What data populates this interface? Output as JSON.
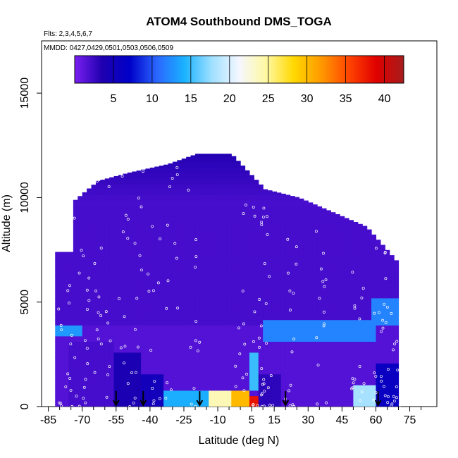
{
  "chart_data": {
    "type": "heatmap",
    "title": "ATOM4 Southbound DMS_TOGA",
    "flights_note": "Flts: 2,3,4,5,6,7",
    "dates_note": "MMDD: 0427,0429,0501,0503,0506,0509",
    "xlabel": "Latitude (deg N)",
    "ylabel": "Altitude (m)",
    "xlim": [
      -88,
      87
    ],
    "ylim": [
      0,
      17500
    ],
    "x_ticks": [
      "-85",
      "-70",
      "-55",
      "-40",
      "-25",
      "-10",
      "5",
      "15",
      "30",
      "45",
      "60",
      "75"
    ],
    "x_tick_values": [
      -85,
      -70,
      -55,
      -40,
      -25,
      -10,
      5,
      15,
      30,
      45,
      60,
      75
    ],
    "y_ticks": [
      "0",
      "5000",
      "10000",
      "15000"
    ],
    "y_tick_values": [
      0,
      5000,
      10000,
      15000
    ],
    "colorbar": {
      "ticks": [
        "5",
        "10",
        "15",
        "20",
        "25",
        "30",
        "35",
        "40"
      ],
      "tick_values": [
        5,
        10,
        15,
        20,
        25,
        30,
        35,
        40
      ],
      "range": [
        0,
        42.5
      ],
      "colors": [
        "#7a1ff0",
        "#1f00b0",
        "#0000c8",
        "#2a66ff",
        "#1ab2ff",
        "#9fe0ff",
        "#f5f7ff",
        "#fff8a0",
        "#ffd800",
        "#ff9900",
        "#ff4400",
        "#e00000",
        "#a61c1c"
      ]
    },
    "arrows_lat": [
      -55,
      -43,
      -18,
      20,
      61
    ],
    "profile_envelope": [
      {
        "lat": -75,
        "top": 9800
      },
      {
        "lat": -64,
        "top": 10800
      },
      {
        "lat": -50,
        "top": 11200
      },
      {
        "lat": -33,
        "top": 11600
      },
      {
        "lat": -20,
        "top": 12100
      },
      {
        "lat": -5,
        "top": 12100
      },
      {
        "lat": 10,
        "top": 10400
      },
      {
        "lat": 25,
        "top": 10000
      },
      {
        "lat": 40,
        "top": 9300
      },
      {
        "lat": 55,
        "top": 8600
      },
      {
        "lat": 68,
        "top": 7000
      }
    ],
    "values": [
      {
        "lat_range": [
          -75,
          -57
        ],
        "alt_range": [
          0,
          3000
        ],
        "value": 2
      },
      {
        "lat_range": [
          -82,
          -70
        ],
        "alt_range": [
          3300,
          4000
        ],
        "value": 13
      },
      {
        "lat_range": [
          -57,
          -45
        ],
        "alt_range": [
          0,
          2500
        ],
        "value": 4
      },
      {
        "lat_range": [
          -45,
          -35
        ],
        "alt_range": [
          0,
          1500
        ],
        "value": 5
      },
      {
        "lat_range": [
          -35,
          -15
        ],
        "alt_range": [
          0,
          800
        ],
        "value": 14
      },
      {
        "lat_range": [
          -15,
          -5
        ],
        "alt_range": [
          0,
          900
        ],
        "value": 24
      },
      {
        "lat_range": [
          -5,
          4
        ],
        "alt_range": [
          0,
          700
        ],
        "value": 30
      },
      {
        "lat_range": [
          4,
          7
        ],
        "alt_range": [
          0,
          600
        ],
        "value": 38
      },
      {
        "lat_range": [
          4,
          8
        ],
        "alt_range": [
          800,
          2500
        ],
        "value": 15
      },
      {
        "lat_range": [
          8,
          18
        ],
        "alt_range": [
          0,
          1500
        ],
        "value": 3
      },
      {
        "lat_range": [
          10,
          60
        ],
        "alt_range": [
          3200,
          4200
        ],
        "value": 12
      },
      {
        "lat_range": [
          50,
          60
        ],
        "alt_range": [
          0,
          1000
        ],
        "value": 18
      },
      {
        "lat_range": [
          60,
          72
        ],
        "alt_range": [
          0,
          2000
        ],
        "value": 6
      },
      {
        "lat_range": [
          58,
          70
        ],
        "alt_range": [
          4000,
          5200
        ],
        "value": 12
      },
      {
        "lat_range": [
          -82,
          72
        ],
        "alt_range": [
          4000,
          9500
        ],
        "value": 2
      }
    ]
  }
}
